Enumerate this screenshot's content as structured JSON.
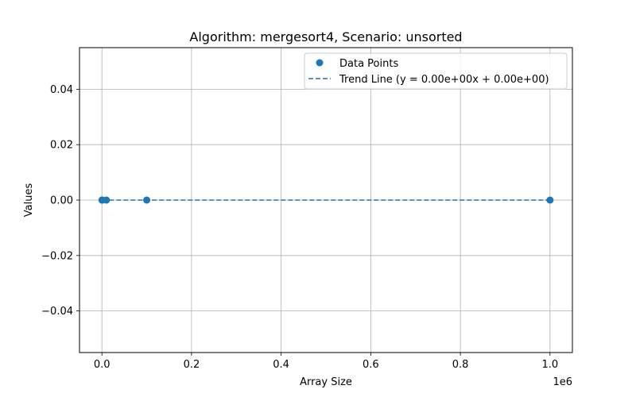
{
  "chart_data": {
    "type": "scatter",
    "title": "Algorithm: mergesort4, Scenario: unsorted",
    "xlabel": "Array Size",
    "ylabel": "Values",
    "x_offset_label": "1e6",
    "xlim": [
      -50000,
      1050000
    ],
    "ylim": [
      -0.055,
      0.055
    ],
    "x_ticks": [
      0,
      200000,
      400000,
      600000,
      800000,
      1000000
    ],
    "x_tick_labels": [
      "0.0",
      "0.2",
      "0.4",
      "0.6",
      "0.8",
      "1.0"
    ],
    "y_ticks": [
      -0.04,
      -0.02,
      0.0,
      0.02,
      0.04
    ],
    "y_tick_labels": [
      "−0.04",
      "−0.02",
      "0.00",
      "0.02",
      "0.04"
    ],
    "grid": true,
    "legend_position": "top-right",
    "colors": {
      "series": "#1f77b4",
      "grid": "#b0b0b0"
    },
    "series": [
      {
        "name": "Data Points",
        "kind": "scatter",
        "x": [
          100,
          1000,
          10000,
          100000,
          1000000
        ],
        "y": [
          0,
          0,
          0,
          0,
          0
        ]
      },
      {
        "name": "Trend Line (y = 0.00e+00x + 0.00e+00)",
        "kind": "line",
        "style": "dashed",
        "x": [
          100,
          1000,
          10000,
          100000,
          1000000
        ],
        "y": [
          0,
          0,
          0,
          0,
          0
        ]
      }
    ]
  }
}
